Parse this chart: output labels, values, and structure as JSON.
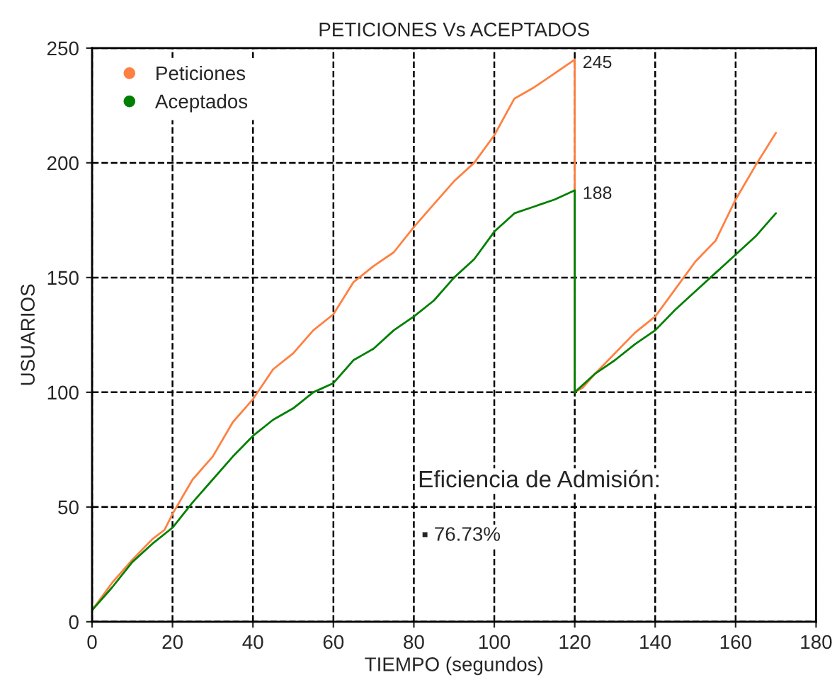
{
  "chart_data": {
    "type": "line",
    "title": "PETICIONES Vs ACEPTADOS",
    "xlabel": "TIEMPO (segundos)",
    "ylabel": "USUARIOS",
    "xlim": [
      0,
      180
    ],
    "xticks": [
      0,
      20,
      40,
      60,
      80,
      100,
      120,
      140,
      160,
      180
    ],
    "ylim": [
      0,
      250
    ],
    "yticks": [
      0,
      50,
      100,
      150,
      200,
      250
    ],
    "grid": true,
    "legend": "top left",
    "marker": "none",
    "line_style": "solid",
    "series": [
      {
        "name": "Peticiones",
        "color": "#ff8040",
        "x": [
          0,
          5,
          10,
          15,
          18,
          20,
          22,
          25,
          30,
          35,
          40,
          45,
          50,
          55,
          60,
          65,
          70,
          75,
          80,
          85,
          90,
          95,
          100,
          105,
          110,
          115,
          120,
          120,
          122,
          125,
          130,
          135,
          140,
          145,
          150,
          155,
          160,
          165,
          170
        ],
        "values": [
          5,
          17,
          27,
          36,
          40,
          47,
          53,
          62,
          72,
          87,
          97,
          110,
          117,
          127,
          134,
          148,
          155,
          161,
          172,
          182,
          192,
          200,
          212,
          228,
          233,
          239,
          245,
          100,
          102,
          108,
          117,
          126,
          133,
          145,
          157,
          166,
          184,
          199,
          213
        ]
      },
      {
        "name": "Aceptados",
        "color": "#008000",
        "x": [
          0,
          5,
          10,
          15,
          20,
          25,
          30,
          35,
          40,
          45,
          50,
          55,
          60,
          65,
          70,
          75,
          80,
          85,
          90,
          95,
          100,
          105,
          110,
          115,
          120,
          120,
          125,
          130,
          135,
          140,
          145,
          150,
          155,
          160,
          165,
          170
        ],
        "values": [
          5,
          15,
          26,
          34,
          41,
          52,
          62,
          72,
          81,
          88,
          93,
          100,
          104,
          114,
          119,
          127,
          133,
          140,
          150,
          158,
          170,
          178,
          181,
          184,
          188,
          100,
          108,
          114,
          121,
          127,
          136,
          144,
          152,
          160,
          168,
          178
        ]
      }
    ],
    "annotations": [
      {
        "text": "245",
        "x": 120,
        "y": 245
      },
      {
        "text": "188",
        "x": 120,
        "y": 188
      },
      "Eficiencia de Admisión:",
      "▪ 76.73%"
    ]
  }
}
